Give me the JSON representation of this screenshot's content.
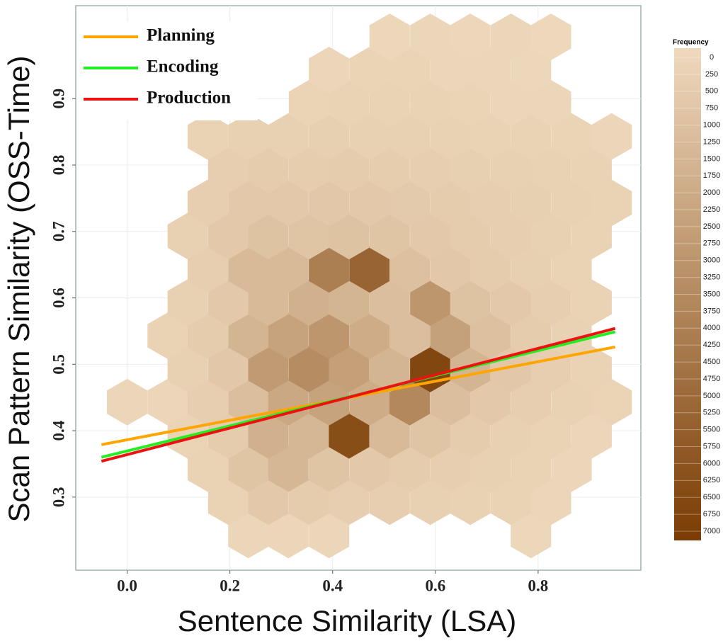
{
  "chart_data": {
    "type": "hexbin",
    "xlabel": "Sentence Similarity (LSA)",
    "ylabel": "Scan Pattern Similarity (OSS-Time)",
    "xlim": [
      -0.1,
      1.0
    ],
    "ylim": [
      0.19,
      1.04
    ],
    "xticks": [
      {
        "value": 0,
        "label": "0.0"
      },
      0.2,
      0.4,
      0.6,
      0.8
    ],
    "yticks": [
      0.3,
      0.4,
      0.5,
      0.6,
      0.7,
      0.8,
      0.9
    ],
    "grid": true,
    "hex_width": 0.0786,
    "colorbar": {
      "title": "Frequency",
      "lim": [
        0,
        7000
      ],
      "low_color": "#efd9bd",
      "high_color": "#7a3c03",
      "ticks": [
        0,
        250,
        500,
        750,
        1000,
        1250,
        1500,
        1750,
        2000,
        2250,
        2500,
        2750,
        3000,
        3250,
        3500,
        3750,
        4000,
        4250,
        4500,
        4750,
        5000,
        5250,
        5500,
        5750,
        6000,
        6250,
        6500,
        6750,
        7000
      ]
    },
    "rows": [
      {
        "y": 0.243,
        "x": [
          0.236,
          0.314,
          0.393,
          0.786
        ],
        "counts": [
          150,
          200,
          150,
          100
        ]
      },
      {
        "y": 0.293,
        "x": [
          0.197,
          0.275,
          0.354,
          0.432,
          0.511,
          0.59,
          0.668,
          0.747,
          0.825
        ],
        "counts": [
          300,
          700,
          600,
          500,
          500,
          400,
          350,
          300,
          200
        ]
      },
      {
        "y": 0.343,
        "x": [
          0.157,
          0.236,
          0.314,
          0.393,
          0.472,
          0.55,
          0.629,
          0.707,
          0.786,
          0.865
        ],
        "counts": [
          300,
          900,
          1500,
          900,
          700,
          600,
          500,
          400,
          300,
          200
        ]
      },
      {
        "y": 0.393,
        "x": [
          0.118,
          0.197,
          0.275,
          0.354,
          0.432,
          0.511,
          0.59,
          0.668,
          0.747,
          0.825,
          0.904
        ],
        "counts": [
          250,
          600,
          1800,
          1500,
          6200,
          1400,
          900,
          600,
          400,
          300,
          200
        ]
      },
      {
        "y": 0.443,
        "x": [
          0,
          0.079,
          0.157,
          0.236,
          0.314,
          0.393,
          0.472,
          0.55,
          0.629,
          0.707,
          0.786,
          0.865,
          0.943
        ],
        "counts": [
          150,
          200,
          500,
          1200,
          2200,
          2400,
          2000,
          3600,
          1200,
          700,
          500,
          350,
          250
        ]
      },
      {
        "y": 0.493,
        "x": [
          0.118,
          0.197,
          0.275,
          0.354,
          0.432,
          0.511,
          0.59,
          0.668,
          0.747,
          0.825,
          0.904
        ],
        "counts": [
          400,
          800,
          2800,
          3400,
          2600,
          1600,
          6500,
          1600,
          800,
          500,
          300
        ]
      },
      {
        "y": 0.543,
        "x": [
          0.079,
          0.157,
          0.236,
          0.314,
          0.393,
          0.472,
          0.55,
          0.629,
          0.707,
          0.786,
          0.865
        ],
        "counts": [
          300,
          600,
          1600,
          2400,
          3000,
          2000,
          1200,
          2500,
          1100,
          600,
          350
        ]
      },
      {
        "y": 0.593,
        "x": [
          0.118,
          0.197,
          0.275,
          0.354,
          0.432,
          0.511,
          0.59,
          0.668,
          0.747,
          0.825,
          0.904
        ],
        "counts": [
          400,
          700,
          1400,
          1800,
          1600,
          1200,
          3000,
          1000,
          700,
          500,
          300
        ]
      },
      {
        "y": 0.643,
        "x": [
          0.157,
          0.236,
          0.314,
          0.393,
          0.472,
          0.55,
          0.629,
          0.707,
          0.786,
          0.865
        ],
        "counts": [
          500,
          1400,
          1400,
          4000,
          5200,
          1100,
          800,
          600,
          450,
          300
        ]
      },
      {
        "y": 0.693,
        "x": [
          0.118,
          0.197,
          0.275,
          0.354,
          0.432,
          0.511,
          0.59,
          0.668,
          0.747,
          0.825,
          0.904
        ],
        "counts": [
          400,
          700,
          1000,
          900,
          1000,
          900,
          700,
          600,
          500,
          400,
          300
        ]
      },
      {
        "y": 0.743,
        "x": [
          0.157,
          0.236,
          0.314,
          0.393,
          0.472,
          0.55,
          0.629,
          0.707,
          0.786,
          0.865,
          0.943
        ],
        "counts": [
          500,
          700,
          700,
          800,
          700,
          650,
          600,
          500,
          450,
          350,
          300
        ]
      },
      {
        "y": 0.793,
        "x": [
          0.197,
          0.275,
          0.354,
          0.432,
          0.511,
          0.59,
          0.668,
          0.747,
          0.825,
          0.904
        ],
        "counts": [
          500,
          600,
          550,
          600,
          550,
          500,
          450,
          400,
          350,
          300
        ]
      },
      {
        "y": 0.843,
        "x": [
          0.157,
          0.236,
          0.314,
          0.393,
          0.472,
          0.55,
          0.629,
          0.707,
          0.786,
          0.865,
          0.943
        ],
        "counts": [
          300,
          400,
          400,
          450,
          400,
          400,
          350,
          300,
          300,
          250,
          200
        ]
      },
      {
        "y": 0.893,
        "x": [
          0.354,
          0.432,
          0.511,
          0.59,
          0.668,
          0.747,
          0.825
        ],
        "counts": [
          250,
          300,
          300,
          300,
          250,
          200,
          150
        ]
      },
      {
        "y": 0.943,
        "x": [
          0.393,
          0.472,
          0.55,
          0.629,
          0.707,
          0.786
        ],
        "counts": [
          200,
          250,
          250,
          200,
          150,
          100
        ]
      },
      {
        "y": 0.993,
        "x": [
          0.511,
          0.59,
          0.668,
          0.747,
          0.825
        ],
        "counts": [
          100,
          150,
          120,
          150,
          80
        ]
      }
    ],
    "series": [
      {
        "name": "Planning",
        "color": "#ffa500",
        "x": [
          -0.05,
          0.95
        ],
        "values": [
          0.379,
          0.526
        ]
      },
      {
        "name": "Encoding",
        "color": "#22ee22",
        "x": [
          -0.05,
          0.95
        ],
        "values": [
          0.36,
          0.549
        ]
      },
      {
        "name": "Production",
        "color": "#ee1111",
        "x": [
          -0.05,
          0.95
        ],
        "values": [
          0.354,
          0.554
        ]
      }
    ]
  }
}
